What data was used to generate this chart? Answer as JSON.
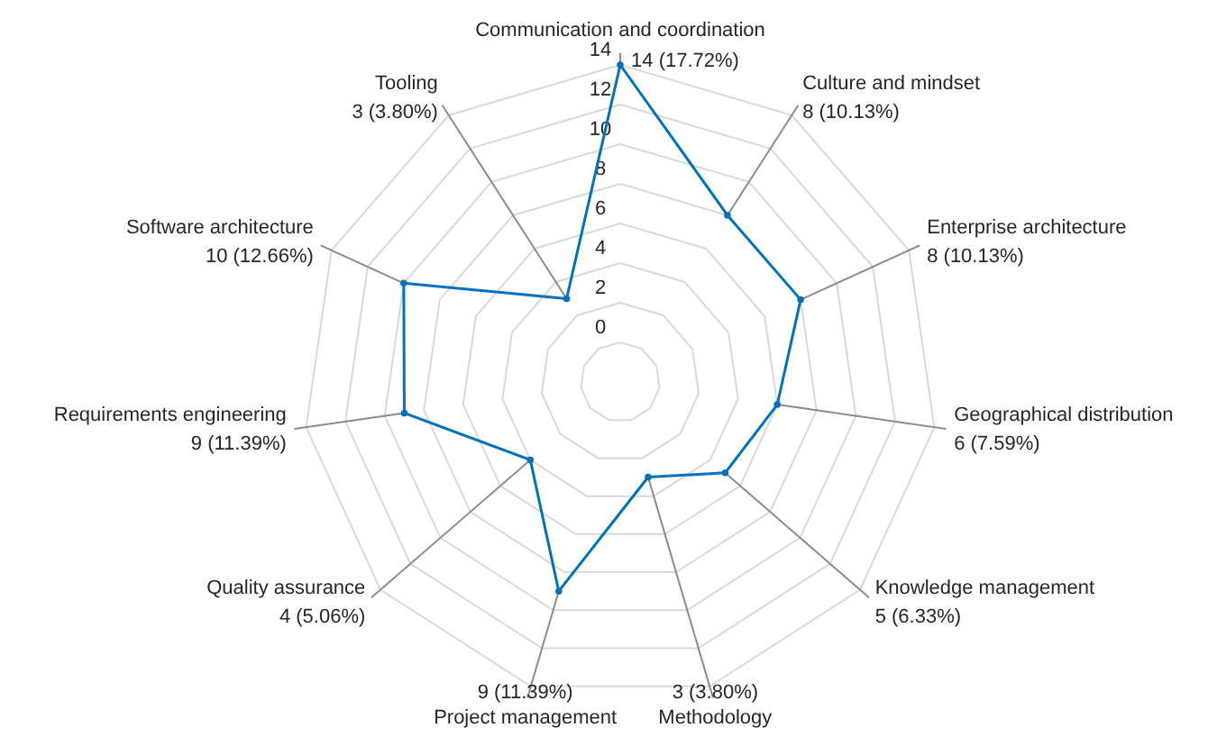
{
  "chart_data": {
    "type": "radar",
    "categories": [
      "Communication and coordination",
      "Culture and mindset",
      "Enterprise architecture",
      "Geographical distribution",
      "Knowledge management",
      "Methodology",
      "Project management",
      "Quality assurance",
      "Requirements engineering",
      "Software architecture",
      "Tooling"
    ],
    "series": [
      {
        "color": "#0072bd",
        "values": [
          14,
          8,
          8,
          6,
          5,
          3,
          9,
          4,
          9,
          10,
          3
        ],
        "value_labels": [
          "14 (17.72%)",
          "8 (10.13%)",
          "8 (10.13%)",
          "6 (7.59%)",
          "5 (6.33%)",
          "3 (3.80%)",
          "9 (11.39%)",
          "4 (5.06%)",
          "9 (11.39%)",
          "10 (12.66%)",
          "3 (3.80%)"
        ]
      }
    ],
    "ylim": [
      -2,
      14
    ],
    "yticks": [
      0,
      2,
      4,
      6,
      8,
      10,
      12,
      14
    ],
    "grid": true,
    "marker": "circle",
    "line_style": "solid"
  }
}
